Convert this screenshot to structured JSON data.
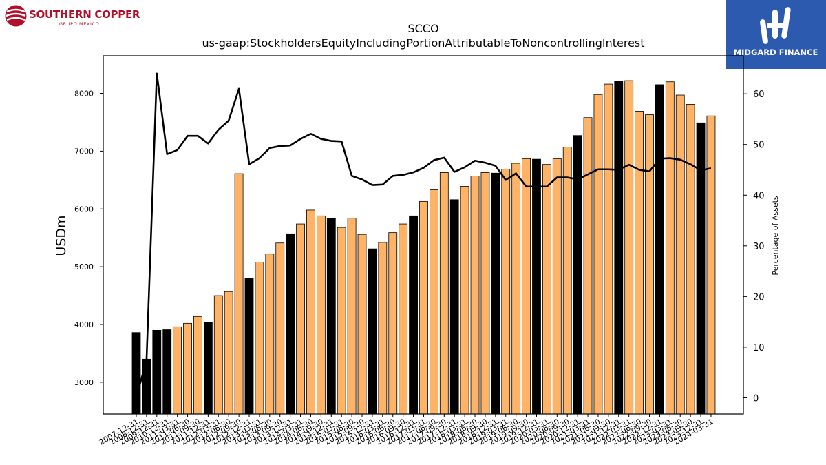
{
  "logos": {
    "left_name": "SOUTHERN COPPER",
    "left_sub": "GRUPO MEXICO",
    "right_name": "MIDGARD FINANCE"
  },
  "colors": {
    "highlight_bar": "#000000",
    "bar": "#ffb366",
    "line": "#000000",
    "logo_red": "#b0102a",
    "logo_blue": "#2b5aae"
  },
  "chart_data": {
    "type": "bar",
    "title": "SCCO",
    "subtitle": "us-gaap:StockholdersEquityIncludingPortionAttributableToNoncontrollingInterest",
    "ylabel": "USDm",
    "y2label": "Percentage of Assets",
    "ylim": [
      2450,
      8650
    ],
    "y2lim": [
      -3.2,
      67.5
    ],
    "yticks": [
      3000,
      4000,
      5000,
      6000,
      7000,
      8000
    ],
    "y2ticks": [
      0,
      10,
      20,
      30,
      40,
      50,
      60
    ],
    "categories": [
      "2007-12-31",
      "2008-12-31",
      "2009-12-31",
      "2010-12-31",
      "2011-03-31",
      "2011-06-30",
      "2011-09-30",
      "2011-12-31",
      "2012-03-31",
      "2012-06-30",
      "2012-09-30",
      "2012-12-31",
      "2013-03-31",
      "2013-06-30",
      "2013-09-30",
      "2013-12-31",
      "2014-03-31",
      "2014-06-30",
      "2014-09-30",
      "2014-12-31",
      "2015-03-31",
      "2015-06-30",
      "2015-09-30",
      "2015-12-31",
      "2016-03-31",
      "2016-06-30",
      "2016-09-30",
      "2016-12-31",
      "2017-03-31",
      "2017-06-30",
      "2017-09-30",
      "2017-12-31",
      "2018-03-31",
      "2018-06-30",
      "2018-09-30",
      "2018-12-31",
      "2019-03-31",
      "2019-06-30",
      "2019-09-30",
      "2019-12-31",
      "2020-03-31",
      "2020-06-30",
      "2020-09-30",
      "2020-12-31",
      "2021-03-31",
      "2021-06-30",
      "2021-09-30",
      "2021-12-31",
      "2022-03-31",
      "2022-06-30",
      "2022-09-30",
      "2022-12-31",
      "2023-03-31",
      "2023-06-30",
      "2023-09-30",
      "2023-12-31",
      "2024-03-31"
    ],
    "series": [
      {
        "kind": "bar",
        "axis": "left",
        "values": [
          3860,
          3400,
          3900,
          3910,
          3960,
          4020,
          4140,
          4040,
          4500,
          4570,
          6610,
          4800,
          5080,
          5220,
          5410,
          5570,
          5740,
          5980,
          5880,
          5840,
          5680,
          5840,
          5560,
          5310,
          5420,
          5590,
          5740,
          5880,
          6130,
          6330,
          6630,
          6160,
          6390,
          6570,
          6630,
          6620,
          6690,
          6790,
          6870,
          6860,
          6770,
          6870,
          7070,
          7270,
          7580,
          7980,
          8160,
          8210,
          8220,
          7690,
          7630,
          8150,
          8200,
          7970,
          7810,
          7490,
          7610
        ],
        "highlight": [
          true,
          true,
          true,
          true,
          false,
          false,
          false,
          true,
          false,
          false,
          false,
          true,
          false,
          false,
          false,
          true,
          false,
          false,
          false,
          true,
          false,
          false,
          false,
          true,
          false,
          false,
          false,
          true,
          false,
          false,
          false,
          true,
          false,
          false,
          false,
          true,
          false,
          false,
          false,
          true,
          false,
          false,
          false,
          true,
          false,
          false,
          false,
          true,
          false,
          false,
          false,
          true,
          false,
          false,
          false,
          true,
          false
        ]
      },
      {
        "kind": "line",
        "axis": "right",
        "values": [
          0.0,
          7.5,
          64.0,
          48.1,
          48.9,
          51.7,
          51.7,
          50.2,
          52.9,
          54.7,
          61.0,
          46.1,
          47.3,
          49.3,
          49.7,
          49.8,
          51.1,
          52.1,
          51.1,
          50.7,
          50.6,
          43.8,
          43.1,
          42.0,
          42.1,
          43.8,
          44.0,
          44.5,
          45.4,
          46.9,
          47.4,
          44.6,
          45.5,
          46.8,
          46.4,
          45.8,
          43.0,
          44.3,
          41.7,
          41.7,
          41.7,
          43.5,
          43.5,
          43.1,
          44.1,
          45.1,
          45.1,
          45.0,
          46.0,
          45.0,
          44.7,
          47.2,
          47.3,
          47.0,
          46.1,
          44.9,
          45.3
        ]
      }
    ],
    "grid": false,
    "legend": "none"
  }
}
